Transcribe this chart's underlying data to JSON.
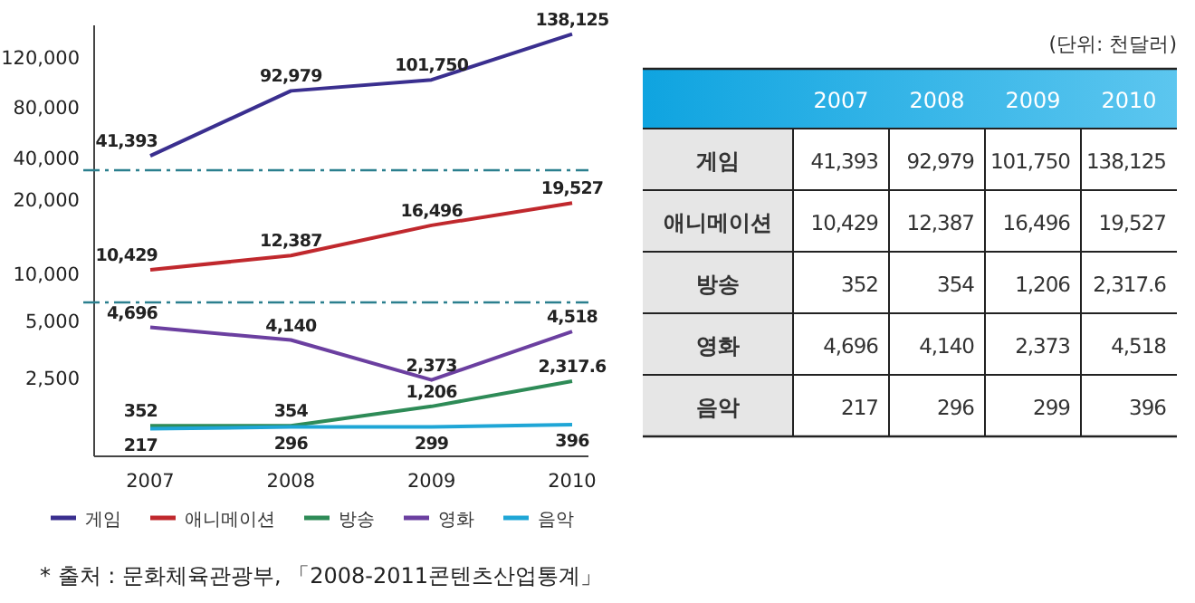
{
  "chart_data": [
    {
      "type": "line",
      "categories": [
        "2007",
        "2008",
        "2009",
        "2010"
      ],
      "ylim": [
        30000,
        145000
      ],
      "yticks": [
        {
          "value": 40000,
          "label": "40,000"
        },
        {
          "value": 80000,
          "label": "80,000"
        },
        {
          "value": 120000,
          "label": "120,000"
        }
      ],
      "tick_labels": "y",
      "data_labels": true,
      "grid": false,
      "marker": "none",
      "series": [
        {
          "name": "게임",
          "color": "#3a2f8f",
          "values": [
            41393,
            92979,
            101750,
            138125
          ],
          "value_labels": [
            "41,393",
            "92,979",
            "101,750",
            "138,125"
          ]
        }
      ]
    },
    {
      "type": "line",
      "categories": [
        null,
        null,
        null,
        null
      ],
      "ylim": [
        6000,
        24000
      ],
      "yticks": [
        {
          "value": 10000,
          "label": "10,000"
        },
        {
          "value": 20000,
          "label": "20,000"
        }
      ],
      "tick_labels": "y",
      "data_labels": true,
      "grid": false,
      "marker": "none",
      "series": [
        {
          "name": "애니메이션",
          "color": "#c0282d",
          "values": [
            10429,
            12387,
            16496,
            19527
          ],
          "value_labels": [
            "10,429",
            "12,387",
            "16,496",
            "19,527"
          ]
        }
      ]
    },
    {
      "type": "line",
      "categories": [
        "2007",
        "2008",
        "2009",
        "2010"
      ],
      "ylim": [
        -1000,
        5800
      ],
      "yticks": [
        {
          "value": 2500,
          "label": "2,500"
        },
        {
          "value": 5000,
          "label": "5,000"
        }
      ],
      "data_labels": true,
      "grid": false,
      "marker": "none",
      "legend": "bottom",
      "annotations": [
        "(단위: 천달러)",
        "* 출처 : 문화체육관광부, 「2008-2011콘텐츠산업통계」"
      ],
      "series": [
        {
          "name": "방송",
          "color": "#2e8b57",
          "values": [
            352,
            354,
            1206,
            2317.6
          ],
          "value_labels": [
            "352",
            "354",
            "1,206",
            "2,317.6"
          ]
        },
        {
          "name": "영화",
          "color": "#6b3fa0",
          "values": [
            4696,
            4140,
            2373,
            4518
          ],
          "value_labels": [
            "4,696",
            "4,140",
            "2,373",
            "4,518"
          ]
        },
        {
          "name": "음악",
          "color": "#1fa6d6",
          "values": [
            217,
            296,
            299,
            396
          ],
          "value_labels": [
            "217",
            "296",
            "299",
            "396"
          ]
        }
      ]
    }
  ]
}
